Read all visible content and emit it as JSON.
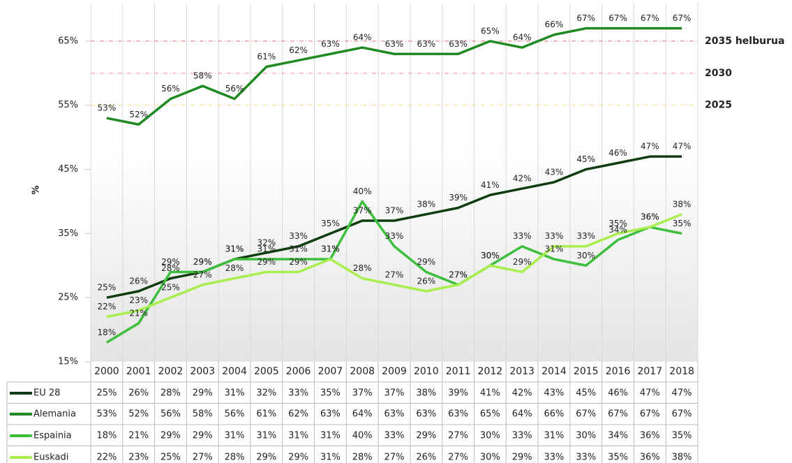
{
  "chart_data": {
    "type": "line",
    "y_label": "%",
    "categories": [
      "2000",
      "2001",
      "2002",
      "2003",
      "2004",
      "2005",
      "2006",
      "2007",
      "2008",
      "2009",
      "2010",
      "2011",
      "2012",
      "2013",
      "2014",
      "2015",
      "2016",
      "2017",
      "2018"
    ],
    "series": [
      {
        "name": "EU 28",
        "color": "#0f3d10",
        "values": [
          25,
          26,
          28,
          29,
          31,
          32,
          33,
          35,
          37,
          37,
          38,
          39,
          41,
          42,
          43,
          45,
          46,
          47,
          47
        ],
        "value_labels": [
          "25%",
          "26%",
          "28%",
          "29%",
          "31%",
          "32%",
          "33%",
          "35%",
          "37%",
          "37%",
          "38%",
          "39%",
          "41%",
          "42%",
          "43%",
          "45%",
          "46%",
          "47%",
          "47%"
        ]
      },
      {
        "name": "Alemania",
        "color": "#1f8a22",
        "values": [
          53,
          52,
          56,
          58,
          56,
          61,
          62,
          63,
          64,
          63,
          63,
          63,
          65,
          64,
          66,
          67,
          67,
          67,
          67
        ],
        "value_labels": [
          "53%",
          "52%",
          "56%",
          "58%",
          "56%",
          "61%",
          "62%",
          "63%",
          "64%",
          "63%",
          "63%",
          "63%",
          "65%",
          "64%",
          "66%",
          "67%",
          "67%",
          "67%",
          "67%"
        ]
      },
      {
        "name": "Espainia",
        "color": "#3dbf3d",
        "values": [
          18,
          21,
          29,
          29,
          31,
          31,
          31,
          31,
          40,
          33,
          29,
          27,
          30,
          33,
          31,
          30,
          34,
          36,
          35
        ],
        "value_labels": [
          "18%",
          "21%",
          "29%",
          "29%",
          "31%",
          "31%",
          "31%",
          "31%",
          "40%",
          "33%",
          "29%",
          "27%",
          "30%",
          "33%",
          "31%",
          "30%",
          "34%",
          "36%",
          "35%"
        ]
      },
      {
        "name": "Euskadi",
        "color": "#a8ee4e",
        "values": [
          22,
          23,
          25,
          27,
          28,
          29,
          29,
          31,
          28,
          27,
          26,
          27,
          30,
          29,
          33,
          33,
          35,
          36,
          38
        ],
        "value_labels": [
          "22%",
          "23%",
          "25%",
          "27%",
          "28%",
          "29%",
          "29%",
          "31%",
          "28%",
          "27%",
          "26%",
          "27%",
          "30%",
          "29%",
          "33%",
          "33%",
          "35%",
          "36%",
          "38%"
        ]
      }
    ],
    "ylim": [
      15,
      70
    ],
    "yticks": [
      {
        "value": 15,
        "label": "15%"
      },
      {
        "value": 25,
        "label": "25%"
      },
      {
        "value": 35,
        "label": "35%"
      },
      {
        "value": 45,
        "label": "45%"
      },
      {
        "value": 55,
        "label": "55%"
      },
      {
        "value": 65,
        "label": "65%"
      }
    ],
    "targets": [
      {
        "label": "2035 helburua",
        "value": 65,
        "color": "#d01c1c"
      },
      {
        "label": "2030",
        "value": 60,
        "color": "#e8455a"
      },
      {
        "label": "2025",
        "value": 55,
        "color": "#f2c230"
      }
    ],
    "grid": true
  }
}
